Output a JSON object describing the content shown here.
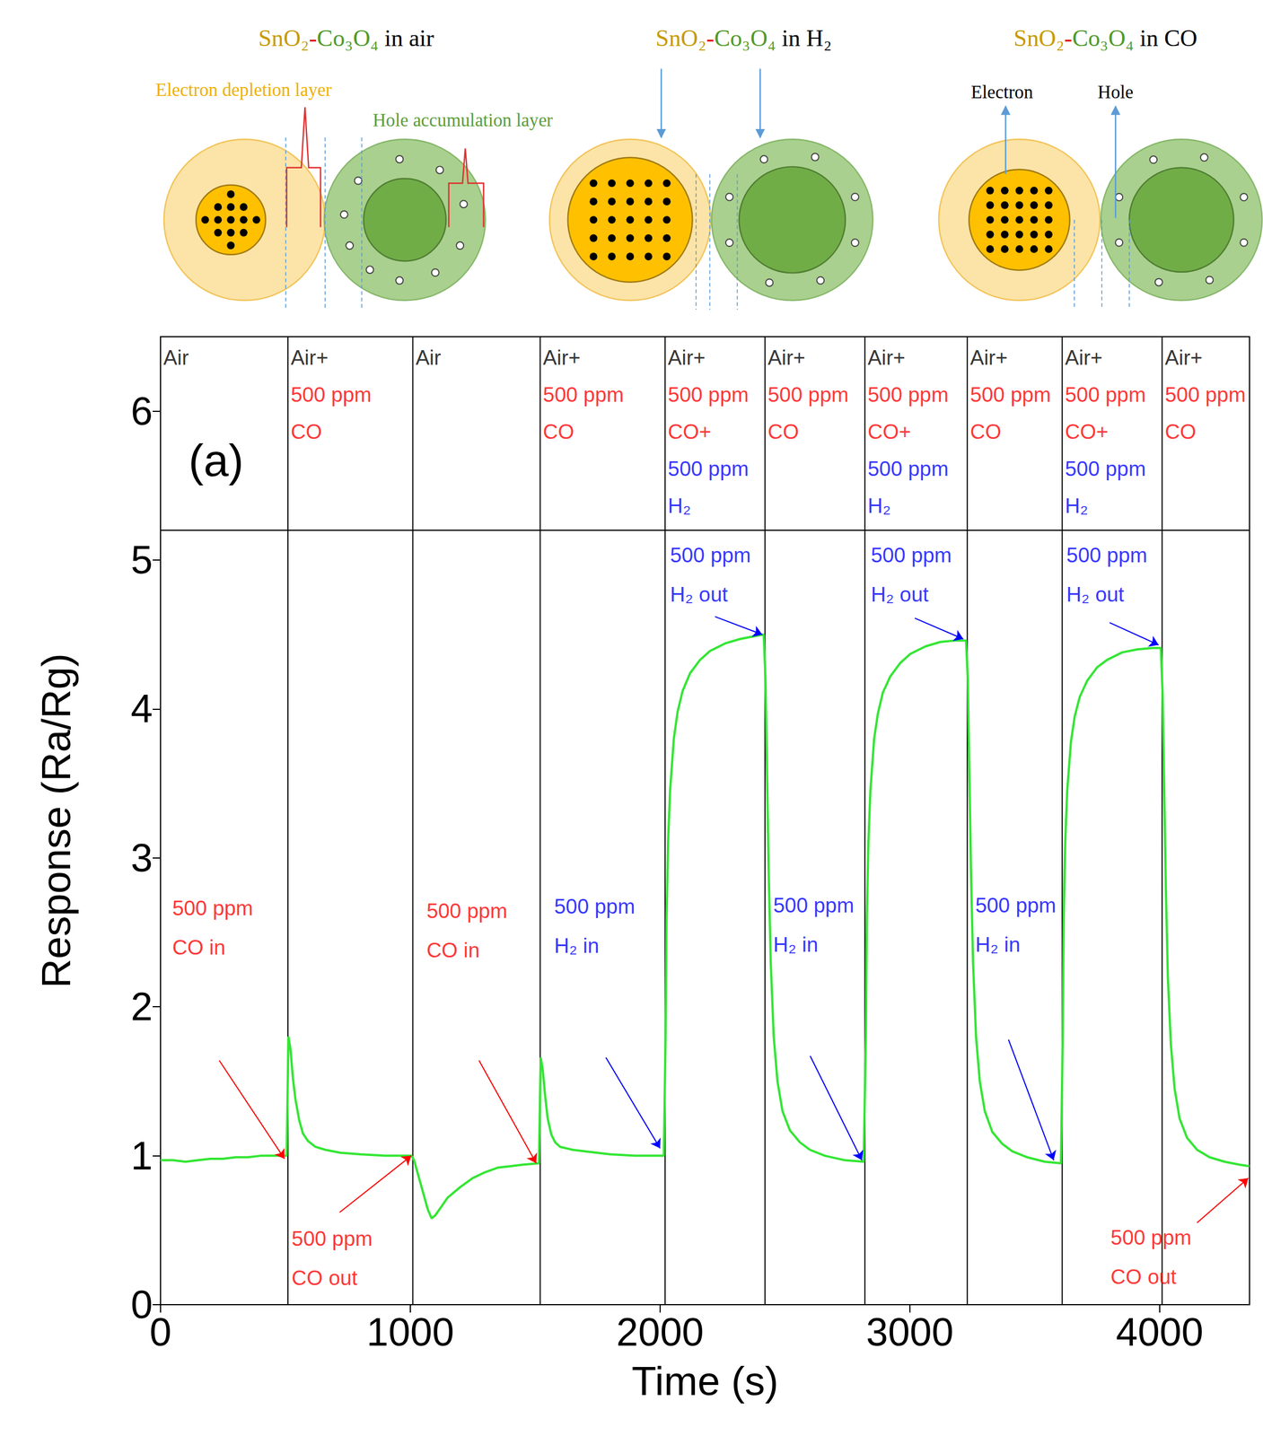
{
  "schematic": {
    "compound": [
      "SnO₂",
      "-",
      "Co₃O₄"
    ],
    "panels": [
      {
        "condition": "in air",
        "labels": [
          "Electron depletion layer",
          "Hole accumulation layer"
        ]
      },
      {
        "condition": "in H₂",
        "labels": []
      },
      {
        "condition": "in CO",
        "labels": [
          "Electron",
          "Hole"
        ]
      }
    ]
  },
  "chart_data": {
    "type": "line",
    "panel_label": "(a)",
    "x_label": "Time (s)",
    "y_label": "Response (Ra/Rg)",
    "xlim": [
      0,
      4360
    ],
    "xticks": [
      0,
      1000,
      2000,
      3000,
      4000
    ],
    "ylim": [
      0,
      6.5
    ],
    "yticks": [
      0,
      1,
      2,
      3,
      4,
      5,
      6
    ],
    "grid": false,
    "color": "#33e633",
    "x": [
      0,
      50,
      100,
      150,
      200,
      250,
      300,
      350,
      400,
      450,
      505,
      512,
      520,
      530,
      540,
      555,
      570,
      590,
      620,
      660,
      720,
      800,
      900,
      1005,
      1015,
      1030,
      1050,
      1070,
      1085,
      1100,
      1125,
      1150,
      1200,
      1250,
      1300,
      1350,
      1400,
      1450,
      1515,
      1522,
      1530,
      1540,
      1550,
      1565,
      1580,
      1600,
      1650,
      1700,
      1800,
      1900,
      2015,
      2022,
      2026,
      2032,
      2040,
      2055,
      2070,
      2090,
      2120,
      2160,
      2200,
      2260,
      2320,
      2380,
      2415,
      2422,
      2428,
      2435,
      2443,
      2455,
      2470,
      2490,
      2520,
      2560,
      2600,
      2660,
      2740,
      2815,
      2824,
      2828,
      2834,
      2842,
      2857,
      2872,
      2892,
      2922,
      2962,
      3002,
      3062,
      3122,
      3182,
      3225,
      3232,
      3238,
      3245,
      3253,
      3265,
      3280,
      3300,
      3330,
      3370,
      3410,
      3470,
      3540,
      3605,
      3612,
      3616,
      3622,
      3630,
      3645,
      3660,
      3680,
      3710,
      3750,
      3790,
      3850,
      3910,
      3970,
      4005,
      4012,
      4018,
      4025,
      4033,
      4045,
      4060,
      4080,
      4110,
      4150,
      4200,
      4260,
      4320,
      4360
    ],
    "values": [
      0.97,
      0.97,
      0.96,
      0.97,
      0.98,
      0.98,
      0.99,
      0.99,
      1.0,
      1.0,
      1.0,
      1.8,
      1.72,
      1.52,
      1.38,
      1.24,
      1.15,
      1.1,
      1.06,
      1.04,
      1.02,
      1.01,
      1.0,
      1.0,
      0.97,
      0.88,
      0.76,
      0.64,
      0.58,
      0.6,
      0.66,
      0.72,
      0.79,
      0.85,
      0.89,
      0.92,
      0.93,
      0.94,
      0.95,
      1.66,
      1.58,
      1.4,
      1.25,
      1.14,
      1.09,
      1.06,
      1.04,
      1.03,
      1.01,
      1.0,
      1.0,
      1.8,
      2.6,
      3.1,
      3.45,
      3.8,
      3.98,
      4.12,
      4.24,
      4.33,
      4.39,
      4.44,
      4.47,
      4.49,
      4.5,
      4.2,
      3.6,
      2.9,
      2.3,
      1.8,
      1.5,
      1.3,
      1.17,
      1.09,
      1.04,
      1.0,
      0.97,
      0.96,
      1.8,
      2.6,
      3.1,
      3.45,
      3.8,
      3.97,
      4.11,
      4.22,
      4.31,
      4.37,
      4.42,
      4.45,
      4.46,
      4.46,
      4.2,
      3.6,
      2.9,
      2.3,
      1.8,
      1.5,
      1.3,
      1.16,
      1.08,
      1.03,
      0.99,
      0.96,
      0.95,
      1.8,
      2.6,
      3.1,
      3.45,
      3.78,
      3.95,
      4.08,
      4.19,
      4.28,
      4.33,
      4.38,
      4.4,
      4.41,
      4.41,
      4.1,
      3.5,
      2.8,
      2.2,
      1.75,
      1.45,
      1.25,
      1.12,
      1.04,
      0.99,
      0.96,
      0.94,
      0.93
    ],
    "condition_row_bottom": 5.2,
    "conditions": [
      {
        "start": 0,
        "end": 510,
        "lines": [
          {
            "text": "Air",
            "color": "#000000"
          }
        ]
      },
      {
        "start": 510,
        "end": 1010,
        "lines": [
          {
            "text": "Air+",
            "color": "#000000"
          },
          {
            "text": "500 ppm",
            "color": "#ff0000"
          },
          {
            "text": "CO",
            "color": "#ff0000"
          }
        ]
      },
      {
        "start": 1010,
        "end": 1520,
        "lines": [
          {
            "text": "Air",
            "color": "#000000"
          }
        ]
      },
      {
        "start": 1520,
        "end": 2020,
        "lines": [
          {
            "text": "Air+",
            "color": "#000000"
          },
          {
            "text": "500 ppm",
            "color": "#ff0000"
          },
          {
            "text": "CO",
            "color": "#ff0000"
          }
        ]
      },
      {
        "start": 2020,
        "end": 2420,
        "lines": [
          {
            "text": "Air+",
            "color": "#000000"
          },
          {
            "text": "500 ppm",
            "color": "#ff0000"
          },
          {
            "text": "CO+",
            "color": "#ff0000"
          },
          {
            "text": "500 ppm",
            "color": "#0000ff"
          },
          {
            "text": "H₂",
            "color": "#0000ff"
          }
        ]
      },
      {
        "start": 2420,
        "end": 2820,
        "lines": [
          {
            "text": "Air+",
            "color": "#000000"
          },
          {
            "text": "500 ppm",
            "color": "#ff0000"
          },
          {
            "text": "CO",
            "color": "#ff0000"
          }
        ]
      },
      {
        "start": 2820,
        "end": 3230,
        "lines": [
          {
            "text": "Air+",
            "color": "#000000"
          },
          {
            "text": "500 ppm",
            "color": "#ff0000"
          },
          {
            "text": "CO+",
            "color": "#ff0000"
          },
          {
            "text": "500 ppm",
            "color": "#0000ff"
          },
          {
            "text": "H₂",
            "color": "#0000ff"
          }
        ]
      },
      {
        "start": 3230,
        "end": 3610,
        "lines": [
          {
            "text": "Air+",
            "color": "#000000"
          },
          {
            "text": "500 ppm",
            "color": "#ff0000"
          },
          {
            "text": "CO",
            "color": "#ff0000"
          }
        ]
      },
      {
        "start": 3610,
        "end": 4010,
        "lines": [
          {
            "text": "Air+",
            "color": "#000000"
          },
          {
            "text": "500 ppm",
            "color": "#ff0000"
          },
          {
            "text": "CO+",
            "color": "#ff0000"
          },
          {
            "text": "500 ppm",
            "color": "#0000ff"
          },
          {
            "text": "H₂",
            "color": "#0000ff"
          }
        ]
      },
      {
        "start": 4010,
        "end": 4360,
        "lines": [
          {
            "text": "Air+",
            "color": "#000000"
          },
          {
            "text": "500 ppm",
            "color": "#ff0000"
          },
          {
            "text": "CO",
            "color": "#ff0000"
          }
        ]
      }
    ],
    "annotations": [
      {
        "lines": [
          "500 ppm",
          "CO in"
        ],
        "color": "#ff0000",
        "x": 47,
        "y": 2.53,
        "arrow_from": [
          235,
          1.64
        ],
        "arrow_to": [
          496,
          0.98
        ]
      },
      {
        "lines": [
          "500 ppm",
          "CO out"
        ],
        "color": "#ff0000",
        "x": 525,
        "y": 0.31,
        "arrow_from": [
          717,
          0.62
        ],
        "arrow_to": [
          1004,
          1.0
        ]
      },
      {
        "lines": [
          "500 ppm",
          "CO in"
        ],
        "color": "#ff0000",
        "x": 1065,
        "y": 2.51,
        "arrow_from": [
          1275,
          1.64
        ],
        "arrow_to": [
          1504,
          0.95
        ]
      },
      {
        "lines": [
          "500 ppm",
          "H₂ in"
        ],
        "color": "#0000ff",
        "x": 1576,
        "y": 2.54,
        "arrow_from": [
          1783,
          1.66
        ],
        "arrow_to": [
          2000,
          1.05
        ]
      },
      {
        "lines": [
          "500 ppm",
          "H₂ out"
        ],
        "color": "#0000ff",
        "x": 2040,
        "y": 4.9,
        "arrow_from": [
          2220,
          4.62
        ],
        "arrow_to": [
          2409,
          4.5
        ]
      },
      {
        "lines": [
          "500 ppm",
          "H₂ in"
        ],
        "color": "#0000ff",
        "x": 2453,
        "y": 2.55,
        "arrow_from": [
          2601,
          1.67
        ],
        "arrow_to": [
          2808,
          0.97
        ]
      },
      {
        "lines": [
          "500 ppm",
          "H₂ out"
        ],
        "color": "#0000ff",
        "x": 2844,
        "y": 4.9,
        "arrow_from": [
          3020,
          4.61
        ],
        "arrow_to": [
          3214,
          4.47
        ]
      },
      {
        "lines": [
          "500 ppm",
          "H₂ in"
        ],
        "color": "#0000ff",
        "x": 3262,
        "y": 2.55,
        "arrow_from": [
          3395,
          1.78
        ],
        "arrow_to": [
          3576,
          0.97
        ]
      },
      {
        "lines": [
          "500 ppm",
          "H₂ out"
        ],
        "color": "#0000ff",
        "x": 3627,
        "y": 4.9,
        "arrow_from": [
          3800,
          4.58
        ],
        "arrow_to": [
          3996,
          4.43
        ]
      },
      {
        "lines": [
          "500 ppm",
          "CO out"
        ],
        "color": "#ff0000",
        "x": 3804,
        "y": 0.32,
        "arrow_from": [
          4150,
          0.55
        ],
        "arrow_to": [
          4355,
          0.85
        ]
      }
    ]
  }
}
